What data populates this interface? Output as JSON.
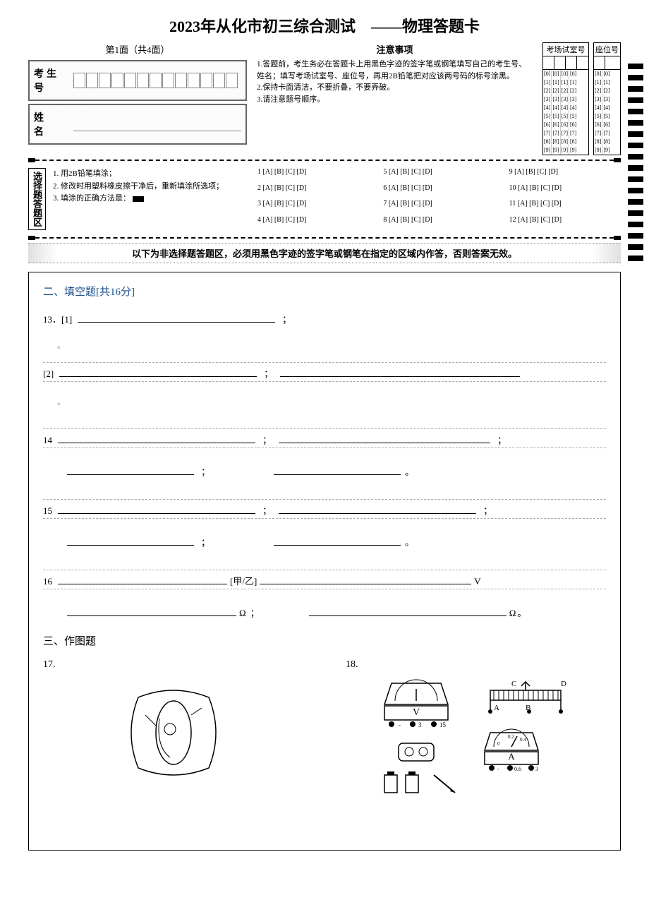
{
  "title": "2023年从化市初三综合测试　——物理答题卡",
  "page_indicator": "第1面（共4面）",
  "student_id_label": "考生号",
  "name_label": "姓　名",
  "student_id_digits": 13,
  "notice_title": "注意事项",
  "notices": [
    "1.答题前，考生务必在答题卡上用黑色字迹的签字笔或钢笔填写自己的考生号、姓名；填写考场试室号、座位号，再用2B铅笔把对应该两号码的标号涂黑。",
    "2.保持卡面清洁，不要折叠，不要弄破。",
    "3.请注意题号顺序。"
  ],
  "room_label": "考场试室号",
  "seat_label": "座位号",
  "room_cols": 4,
  "seat_cols": 2,
  "bubble_digits": [
    "[0]",
    "[1]",
    "[2]",
    "[3]",
    "[4]",
    "[5]",
    "[6]",
    "[7]",
    "[8]",
    "[9]"
  ],
  "choice_area_label": "选择题答题区",
  "choice_instructions": [
    "1. 用2B铅笔填涂；",
    "2. 修改时用塑料橡皮擦干净后，重新填涂所选项；",
    "3. 填涂的正确方法是："
  ],
  "choice_options": "[A] [B] [C] [D]",
  "choice_count": 12,
  "warning_text": "以下为非选择题答题区，必须用黑色字迹的签字笔或钢笔在指定的区域内作答，否则答案无效。",
  "section2_title": "二、填空题[共16分]",
  "q13_label": "13．[1]",
  "q13_sub2": "[2]",
  "q14_label": "14",
  "q15_label": "15",
  "q16_label": "16",
  "q16_mid": "[甲/乙]",
  "unit_V": "V",
  "unit_ohm": "Ω",
  "semicolon": "；",
  "period_mark": "。",
  "section3_title": "三、作图题",
  "q17_label": "17.",
  "q18_label": "18.",
  "colors": {
    "title_blue": "#1a4d8f",
    "border": "#000000",
    "text": "#000000"
  }
}
